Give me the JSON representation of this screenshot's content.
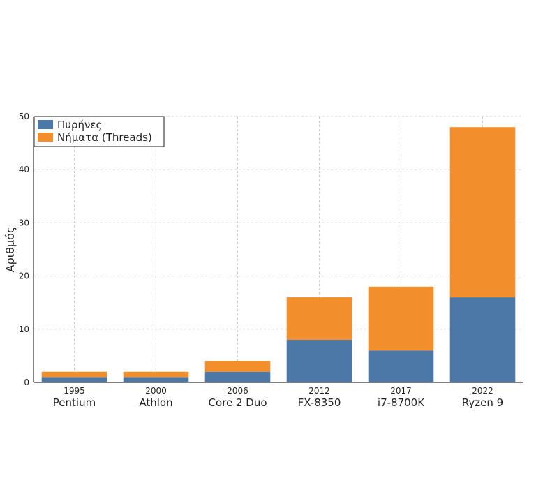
{
  "chart_data": {
    "type": "bar",
    "stacked": true,
    "categories": [
      "1995",
      "2000",
      "2006",
      "2012",
      "2017",
      "2022"
    ],
    "category_names": [
      "Pentium",
      "Athlon",
      "Core 2 Duo",
      "FX-8350",
      "i7-8700K",
      "Ryzen 9"
    ],
    "series": [
      {
        "name": "Πυρήνες",
        "values": [
          1,
          1,
          2,
          8,
          6,
          16
        ],
        "color": "#4c78a8"
      },
      {
        "name": "Νήματα (Threads)",
        "values": [
          1,
          1,
          2,
          8,
          12,
          32
        ],
        "color": "#f28e2b"
      }
    ],
    "xlabel": "",
    "ylabel": "Αριθμός",
    "ylim": [
      0,
      50
    ],
    "yticks": [
      0,
      10,
      20,
      30,
      40,
      50
    ],
    "grid": true,
    "legend_position": "top-left"
  }
}
